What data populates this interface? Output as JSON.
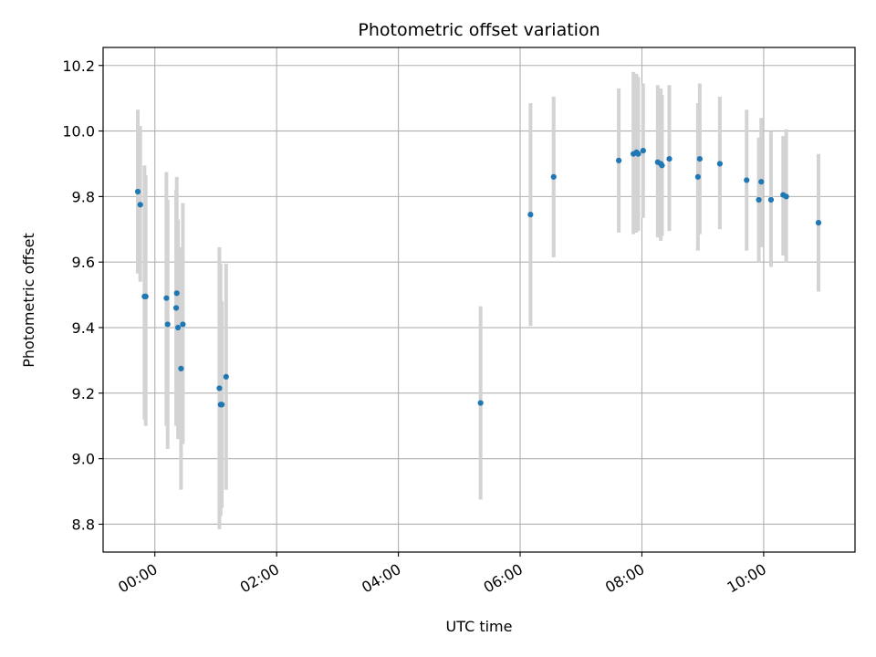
{
  "chart_data": {
    "type": "scatter",
    "title": "Photometric offset variation",
    "xlabel": "UTC time",
    "ylabel": "Photometric offset",
    "xlim_hours": [
      -0.85,
      11.5
    ],
    "ylim": [
      8.715,
      10.255
    ],
    "grid": true,
    "x_ticks": [
      {
        "value": 0,
        "label": "00:00"
      },
      {
        "value": 2,
        "label": "02:00"
      },
      {
        "value": 4,
        "label": "04:00"
      },
      {
        "value": 6,
        "label": "06:00"
      },
      {
        "value": 8,
        "label": "08:00"
      },
      {
        "value": 10,
        "label": "10:00"
      }
    ],
    "y_ticks": [
      {
        "value": 8.8,
        "label": "8.8"
      },
      {
        "value": 9.0,
        "label": "9.0"
      },
      {
        "value": 9.2,
        "label": "9.2"
      },
      {
        "value": 9.4,
        "label": "9.4"
      },
      {
        "value": 9.6,
        "label": "9.6"
      },
      {
        "value": 9.8,
        "label": "9.8"
      },
      {
        "value": 10.0,
        "label": "10.0"
      },
      {
        "value": 10.2,
        "label": "10.2"
      }
    ],
    "colors": {
      "point": "#1f77b4",
      "errorbar": "#d3d3d3",
      "grid": "#b0b0b0",
      "axis": "#000000"
    },
    "points": [
      {
        "t": -0.28,
        "y": 9.815,
        "lo": 9.565,
        "hi": 10.065
      },
      {
        "t": -0.24,
        "y": 9.775,
        "lo": 9.54,
        "hi": 10.015
      },
      {
        "t": -0.17,
        "y": 9.495,
        "lo": 9.12,
        "hi": 9.895
      },
      {
        "t": -0.15,
        "y": 9.495,
        "lo": 9.1,
        "hi": 9.865
      },
      {
        "t": 0.19,
        "y": 9.49,
        "lo": 9.1,
        "hi": 9.875
      },
      {
        "t": 0.21,
        "y": 9.41,
        "lo": 9.03,
        "hi": 9.79
      },
      {
        "t": 0.35,
        "y": 9.46,
        "lo": 9.1,
        "hi": 9.82
      },
      {
        "t": 0.36,
        "y": 9.505,
        "lo": 9.12,
        "hi": 9.86
      },
      {
        "t": 0.38,
        "y": 9.4,
        "lo": 9.06,
        "hi": 9.73
      },
      {
        "t": 0.43,
        "y": 9.275,
        "lo": 8.905,
        "hi": 9.645
      },
      {
        "t": 0.46,
        "y": 9.41,
        "lo": 9.045,
        "hi": 9.78
      },
      {
        "t": 1.06,
        "y": 9.215,
        "lo": 8.785,
        "hi": 9.645
      },
      {
        "t": 1.08,
        "y": 9.165,
        "lo": 8.825,
        "hi": 9.595
      },
      {
        "t": 1.1,
        "y": 9.165,
        "lo": 8.85,
        "hi": 9.48
      },
      {
        "t": 1.17,
        "y": 9.25,
        "lo": 8.905,
        "hi": 9.595
      },
      {
        "t": 5.35,
        "y": 9.17,
        "lo": 8.875,
        "hi": 9.465
      },
      {
        "t": 6.17,
        "y": 9.745,
        "lo": 9.405,
        "hi": 10.085
      },
      {
        "t": 6.55,
        "y": 9.86,
        "lo": 9.615,
        "hi": 10.105
      },
      {
        "t": 7.62,
        "y": 9.91,
        "lo": 9.69,
        "hi": 10.13
      },
      {
        "t": 7.86,
        "y": 9.93,
        "lo": 9.685,
        "hi": 10.18
      },
      {
        "t": 7.91,
        "y": 9.935,
        "lo": 9.69,
        "hi": 10.175
      },
      {
        "t": 7.94,
        "y": 9.93,
        "lo": 9.695,
        "hi": 10.165
      },
      {
        "t": 8.02,
        "y": 9.94,
        "lo": 9.735,
        "hi": 10.145
      },
      {
        "t": 8.26,
        "y": 9.905,
        "lo": 9.675,
        "hi": 10.14
      },
      {
        "t": 8.31,
        "y": 9.9,
        "lo": 9.665,
        "hi": 10.13
      },
      {
        "t": 8.33,
        "y": 9.895,
        "lo": 9.68,
        "hi": 10.11
      },
      {
        "t": 8.45,
        "y": 9.915,
        "lo": 9.695,
        "hi": 10.14
      },
      {
        "t": 8.92,
        "y": 9.86,
        "lo": 9.635,
        "hi": 10.085
      },
      {
        "t": 8.95,
        "y": 9.915,
        "lo": 9.685,
        "hi": 10.145
      },
      {
        "t": 9.28,
        "y": 9.9,
        "lo": 9.7,
        "hi": 10.105
      },
      {
        "t": 9.72,
        "y": 9.85,
        "lo": 9.635,
        "hi": 10.065
      },
      {
        "t": 9.92,
        "y": 9.79,
        "lo": 9.6,
        "hi": 9.98
      },
      {
        "t": 9.96,
        "y": 9.845,
        "lo": 9.645,
        "hi": 10.04
      },
      {
        "t": 10.12,
        "y": 9.79,
        "lo": 9.585,
        "hi": 10.0
      },
      {
        "t": 10.32,
        "y": 9.805,
        "lo": 9.62,
        "hi": 9.985
      },
      {
        "t": 10.37,
        "y": 9.8,
        "lo": 9.6,
        "hi": 10.005
      },
      {
        "t": 10.9,
        "y": 9.72,
        "lo": 9.51,
        "hi": 9.93
      }
    ]
  }
}
